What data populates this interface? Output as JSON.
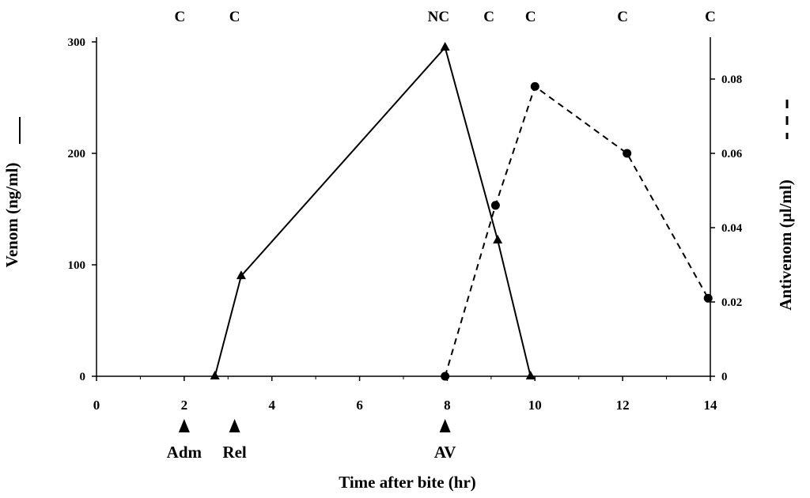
{
  "chart_data": {
    "type": "line",
    "xlabel": "Time after bite (hr)",
    "ylabel": "Venom (ng/ml)",
    "y2label": "Antivenom (µl/ml)",
    "xlim": [
      0,
      14
    ],
    "ylim": [
      0,
      300
    ],
    "y2lim": [
      0,
      0.09
    ],
    "x_ticks": [
      "0",
      "2",
      "4",
      "6",
      "8",
      "10",
      "12",
      "14"
    ],
    "y_ticks": [
      "0",
      "100",
      "200",
      "300"
    ],
    "y2_ticks": [
      "0",
      "0.02",
      "0.04",
      "0.06",
      "0.08"
    ],
    "grid": false,
    "series": [
      {
        "axis": "left",
        "line_style": "solid",
        "marker": "triangle",
        "x": [
          2.7,
          3.3,
          7.95,
          9.15,
          9.9
        ],
        "y": [
          0,
          90,
          295,
          122,
          0
        ]
      },
      {
        "axis": "right",
        "line_style": "dashed",
        "marker": "circle",
        "x": [
          7.95,
          9.1,
          10.0,
          12.1,
          13.95
        ],
        "y": [
          0,
          0.046,
          0.078,
          0.06,
          0.021
        ]
      }
    ],
    "top_annotations": [
      {
        "x": 1.9,
        "text": "C"
      },
      {
        "x": 3.15,
        "text": "C"
      },
      {
        "x": 7.8,
        "text": "NC"
      },
      {
        "x": 8.95,
        "text": "C"
      },
      {
        "x": 9.9,
        "text": "C"
      },
      {
        "x": 12.0,
        "text": "C"
      },
      {
        "x": 14.0,
        "text": "C"
      }
    ],
    "events": [
      {
        "x": 2.0,
        "text": "Adm"
      },
      {
        "x": 3.15,
        "text": "Rel"
      },
      {
        "x": 7.95,
        "text": "AV"
      }
    ]
  }
}
